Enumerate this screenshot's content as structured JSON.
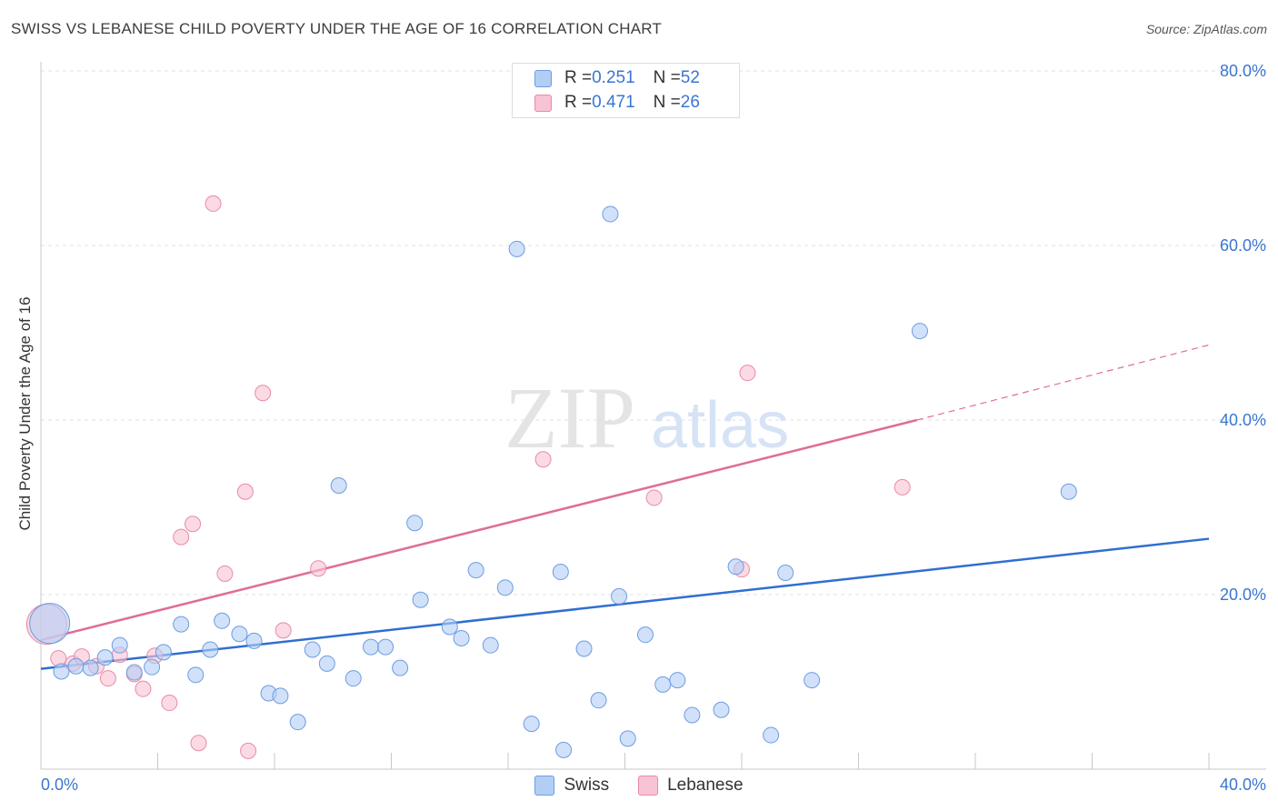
{
  "header": {
    "title": "SWISS VS LEBANESE CHILD POVERTY UNDER THE AGE OF 16 CORRELATION CHART",
    "source": "Source: ZipAtlas.com"
  },
  "watermark": {
    "zip": "ZIP",
    "atlas": "atlas"
  },
  "legend_top": {
    "rows": [
      {
        "r_label": "R = ",
        "r_value": "0.251",
        "n_label": "N = ",
        "n_value": "52"
      },
      {
        "r_label": "R = ",
        "r_value": "0.471",
        "n_label": "N = ",
        "n_value": "26"
      }
    ]
  },
  "legend_bottom": {
    "swiss": "Swiss",
    "lebanese": "Lebanese"
  },
  "colors": {
    "swiss_fill": "#b3cef5",
    "swiss_stroke": "#6d9de0",
    "swiss_line": "#2f6fd0",
    "lebanese_fill": "#f8c3d4",
    "lebanese_stroke": "#e98aa8",
    "lebanese_line": "#e06d96",
    "tick_text": "#3a76d0",
    "grid": "#e2e2e2"
  },
  "chart_data": {
    "type": "scatter",
    "title": "SWISS VS LEBANESE CHILD POVERTY UNDER THE AGE OF 16 CORRELATION CHART",
    "xlabel": "",
    "ylabel": "Child Poverty Under the Age of 16",
    "xlim": [
      0,
      40
    ],
    "ylim": [
      0,
      80
    ],
    "x_tick_labels": [
      "0.0%",
      "40.0%"
    ],
    "y_ticks": [
      20,
      40,
      60,
      80
    ],
    "y_tick_labels": [
      "20.0%",
      "40.0%",
      "60.0%",
      "80.0%"
    ],
    "series": [
      {
        "name": "Swiss",
        "R": 0.251,
        "N": 52,
        "points": [
          {
            "x": 0.3,
            "y": 16.7,
            "big": true
          },
          {
            "x": 0.7,
            "y": 11.2
          },
          {
            "x": 1.2,
            "y": 11.8
          },
          {
            "x": 1.7,
            "y": 11.6
          },
          {
            "x": 2.2,
            "y": 12.8
          },
          {
            "x": 2.7,
            "y": 14.2
          },
          {
            "x": 3.2,
            "y": 11.1
          },
          {
            "x": 3.8,
            "y": 11.7
          },
          {
            "x": 4.2,
            "y": 13.4
          },
          {
            "x": 4.8,
            "y": 16.6
          },
          {
            "x": 5.3,
            "y": 10.8
          },
          {
            "x": 5.8,
            "y": 13.7
          },
          {
            "x": 6.2,
            "y": 17.0
          },
          {
            "x": 6.8,
            "y": 15.5
          },
          {
            "x": 7.3,
            "y": 14.7
          },
          {
            "x": 7.8,
            "y": 8.7
          },
          {
            "x": 8.2,
            "y": 8.4
          },
          {
            "x": 8.8,
            "y": 5.4
          },
          {
            "x": 9.3,
            "y": 13.7
          },
          {
            "x": 9.8,
            "y": 12.1
          },
          {
            "x": 10.2,
            "y": 32.5
          },
          {
            "x": 10.7,
            "y": 10.4
          },
          {
            "x": 11.3,
            "y": 14.0
          },
          {
            "x": 11.8,
            "y": 14.0
          },
          {
            "x": 12.3,
            "y": 11.6
          },
          {
            "x": 12.8,
            "y": 28.2
          },
          {
            "x": 13.0,
            "y": 19.4
          },
          {
            "x": 14.0,
            "y": 16.3
          },
          {
            "x": 14.4,
            "y": 15.0
          },
          {
            "x": 14.9,
            "y": 22.8
          },
          {
            "x": 15.4,
            "y": 14.2
          },
          {
            "x": 15.9,
            "y": 20.8
          },
          {
            "x": 16.3,
            "y": 59.6
          },
          {
            "x": 16.8,
            "y": 5.2
          },
          {
            "x": 17.8,
            "y": 22.6
          },
          {
            "x": 17.9,
            "y": 2.2
          },
          {
            "x": 18.6,
            "y": 13.8
          },
          {
            "x": 19.1,
            "y": 7.9
          },
          {
            "x": 19.5,
            "y": 63.6
          },
          {
            "x": 19.8,
            "y": 19.8
          },
          {
            "x": 20.1,
            "y": 3.5
          },
          {
            "x": 20.7,
            "y": 15.4
          },
          {
            "x": 21.3,
            "y": 9.7
          },
          {
            "x": 21.8,
            "y": 10.2
          },
          {
            "x": 22.3,
            "y": 6.2
          },
          {
            "x": 23.3,
            "y": 6.8
          },
          {
            "x": 23.8,
            "y": 23.2
          },
          {
            "x": 25.0,
            "y": 3.9
          },
          {
            "x": 25.5,
            "y": 22.5
          },
          {
            "x": 26.4,
            "y": 10.2
          },
          {
            "x": 30.1,
            "y": 50.2
          },
          {
            "x": 35.2,
            "y": 31.8
          }
        ],
        "trend": {
          "x0": 0,
          "y0": 11.5,
          "x1": 40,
          "y1": 26.4
        }
      },
      {
        "name": "Lebanese",
        "R": 0.471,
        "N": 26,
        "points": [
          {
            "x": 0.2,
            "y": 16.6,
            "big": true
          },
          {
            "x": 0.6,
            "y": 12.7
          },
          {
            "x": 1.1,
            "y": 12.1
          },
          {
            "x": 1.4,
            "y": 12.9
          },
          {
            "x": 1.9,
            "y": 11.8
          },
          {
            "x": 2.3,
            "y": 10.4
          },
          {
            "x": 2.7,
            "y": 13.1
          },
          {
            "x": 3.2,
            "y": 10.9
          },
          {
            "x": 3.5,
            "y": 9.2
          },
          {
            "x": 3.9,
            "y": 13.0
          },
          {
            "x": 4.4,
            "y": 7.6
          },
          {
            "x": 4.8,
            "y": 26.6
          },
          {
            "x": 5.2,
            "y": 28.1
          },
          {
            "x": 5.4,
            "y": 3.0
          },
          {
            "x": 5.9,
            "y": 64.8
          },
          {
            "x": 6.3,
            "y": 22.4
          },
          {
            "x": 7.0,
            "y": 31.8
          },
          {
            "x": 7.1,
            "y": 2.1
          },
          {
            "x": 7.6,
            "y": 43.1
          },
          {
            "x": 8.3,
            "y": 15.9
          },
          {
            "x": 9.5,
            "y": 23.0
          },
          {
            "x": 17.2,
            "y": 35.5
          },
          {
            "x": 21.0,
            "y": 31.1
          },
          {
            "x": 24.0,
            "y": 22.9
          },
          {
            "x": 24.2,
            "y": 45.4
          },
          {
            "x": 29.5,
            "y": 32.3
          }
        ],
        "trend": {
          "x0": 0,
          "y0": 14.8,
          "x1": 30,
          "y1": 40.0
        },
        "trend_dashed": {
          "x0": 30,
          "y0": 40.0,
          "x1": 40,
          "y1": 48.6
        }
      }
    ]
  }
}
